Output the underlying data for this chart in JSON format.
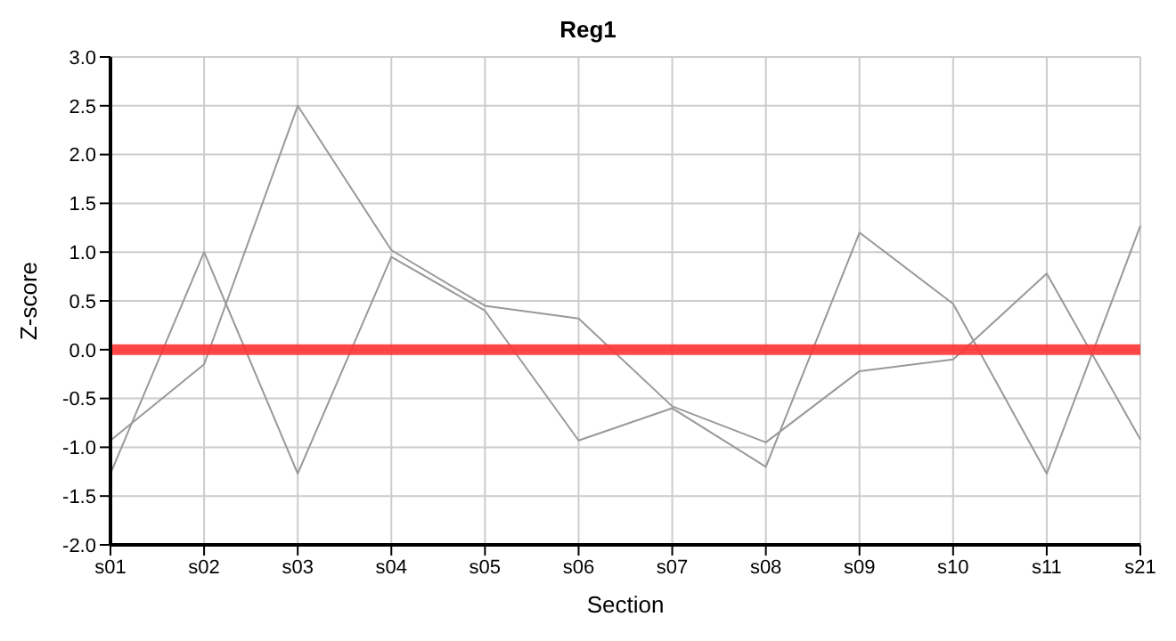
{
  "chart_data": {
    "type": "line",
    "title": "Reg1",
    "xlabel": "Section",
    "ylabel": "Z-score",
    "categories": [
      "s01",
      "s02",
      "s03",
      "s04",
      "s05",
      "s06",
      "s07",
      "s08",
      "s09",
      "s10",
      "s11",
      "s21"
    ],
    "series": [
      {
        "color": "#999999",
        "values": [
          -1.27,
          1.0,
          -1.27,
          0.95,
          0.4,
          -0.93,
          -0.6,
          -1.2,
          1.2,
          0.47,
          -1.27,
          1.27
        ]
      },
      {
        "color": "#999999",
        "values": [
          -0.93,
          -0.15,
          2.5,
          1.02,
          0.45,
          0.32,
          -0.58,
          -0.95,
          -0.22,
          -0.1,
          0.78,
          -0.92
        ]
      }
    ],
    "ylim": [
      -2.0,
      3.0
    ],
    "yticks": [
      {
        "value": -2,
        "label": "-2.0"
      },
      {
        "value": -1.5,
        "label": "-1.5"
      },
      {
        "value": -1,
        "label": "-1.0"
      },
      {
        "value": -0.5,
        "label": "-0.5"
      },
      {
        "value": 0,
        "label": "0.0"
      },
      {
        "value": 0.5,
        "label": "0.5"
      },
      {
        "value": 1,
        "label": "1.0"
      },
      {
        "value": 1.5,
        "label": "1.5"
      },
      {
        "value": 2,
        "label": "2.0"
      },
      {
        "value": 2.5,
        "label": "2.5"
      },
      {
        "value": 3,
        "label": "3.0"
      }
    ],
    "grid": true,
    "legend": false,
    "marker": "none",
    "line_style": "solid",
    "ref_lines": [
      {
        "axis": "y",
        "value": 0,
        "color": "#ff3333"
      }
    ]
  }
}
